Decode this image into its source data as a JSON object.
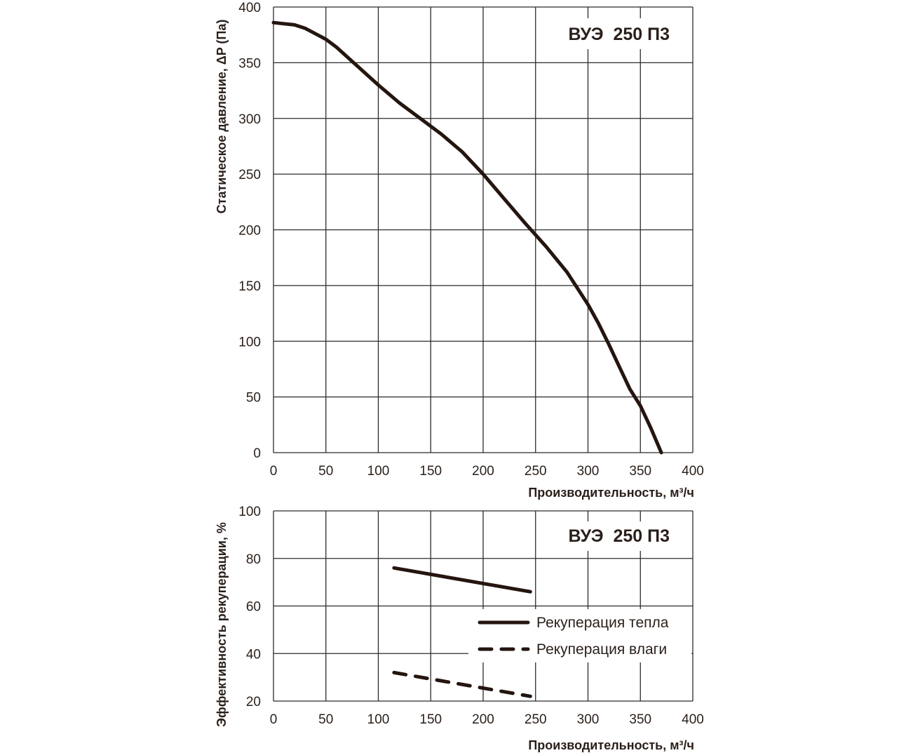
{
  "chart_data": [
    {
      "type": "line",
      "title": "ВУЭ  250 П3",
      "xlabel": "Производительность, м³/ч",
      "ylabel": "Статическое давление, ΔP (Па)",
      "xlim": [
        0,
        400
      ],
      "ylim": [
        0,
        400
      ],
      "xticks": [
        0,
        50,
        100,
        150,
        200,
        250,
        300,
        350,
        400
      ],
      "yticks": [
        0,
        50,
        100,
        150,
        200,
        250,
        300,
        350,
        400
      ],
      "xtick_labels": [
        "0",
        "50",
        "100",
        "150",
        "200",
        "250",
        "300",
        "350",
        "400"
      ],
      "ytick_labels": [
        "0",
        "50",
        "100",
        "150",
        "200",
        "250",
        "300",
        "350",
        "400"
      ],
      "grid": true,
      "series": [
        {
          "name": "ВУЭ 250 П3",
          "color": "#24150f",
          "style": "solid",
          "x": [
            0,
            10,
            20,
            30,
            40,
            50,
            60,
            80,
            100,
            120,
            140,
            160,
            180,
            200,
            220,
            240,
            260,
            280,
            300,
            310,
            320,
            330,
            340,
            350,
            360,
            370
          ],
          "y": [
            386,
            385,
            384,
            381,
            376,
            371,
            364,
            347,
            330,
            314,
            300,
            286,
            270,
            250,
            228,
            206,
            185,
            162,
            133,
            116,
            97,
            77,
            57,
            42,
            22,
            0
          ]
        }
      ]
    },
    {
      "type": "line",
      "title": "ВУЭ  250 П3",
      "xlabel": "Производительность, м³/ч",
      "ylabel": "Эффективность рекуперации, %",
      "xlim": [
        0,
        400
      ],
      "ylim": [
        20,
        100
      ],
      "xticks": [
        0,
        50,
        100,
        150,
        200,
        250,
        300,
        350,
        400
      ],
      "yticks": [
        20,
        40,
        60,
        80,
        100
      ],
      "xtick_labels": [
        "0",
        "50",
        "100",
        "150",
        "200",
        "250",
        "300",
        "350",
        "400"
      ],
      "ytick_labels": [
        "20",
        "40",
        "60",
        "80",
        "100"
      ],
      "grid": true,
      "legend_position": "center-right",
      "series": [
        {
          "name": "Рекуперация тепла",
          "color": "#24150f",
          "style": "solid",
          "x": [
            115,
            245
          ],
          "y": [
            76,
            66
          ]
        },
        {
          "name": "Рекуперация влаги",
          "color": "#24150f",
          "style": "dashed",
          "x": [
            115,
            245
          ],
          "y": [
            32,
            22
          ]
        }
      ]
    }
  ]
}
